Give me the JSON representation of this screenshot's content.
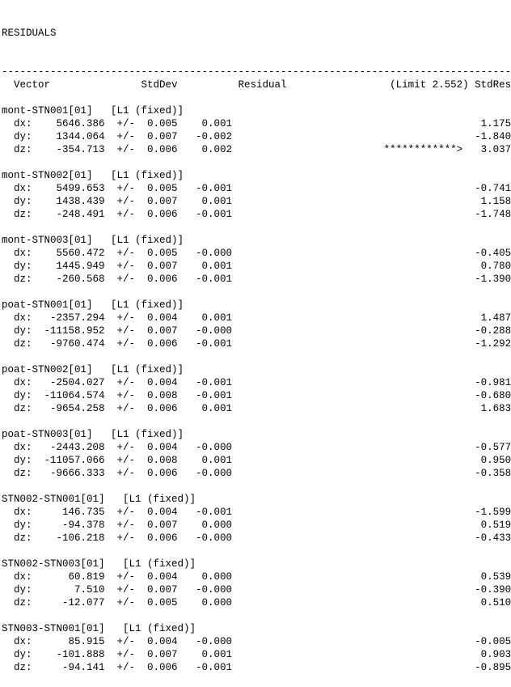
{
  "report": {
    "title": "RESIDUALS",
    "divider_char": "-",
    "line_width": 84,
    "columns": {
      "vector": "Vector",
      "stddev": "StdDev",
      "residual": "Residual",
      "limit_stdres": "(Limit 2.552) StdRes"
    },
    "limit": "2.552",
    "plus_minus": "+/-",
    "flag_marker": "************>",
    "solution_tag": "[L1 (fixed)]",
    "blocks": [
      {
        "name": "mont-STN001[01]",
        "rows": [
          {
            "label": "dx:",
            "value": "5646.386",
            "stddev": "0.005",
            "residual": "0.001",
            "flag": "",
            "stdres": "1.175"
          },
          {
            "label": "dy:",
            "value": "1344.064",
            "stddev": "0.007",
            "residual": "-0.002",
            "flag": "",
            "stdres": "-1.840"
          },
          {
            "label": "dz:",
            "value": "-354.713",
            "stddev": "0.006",
            "residual": "0.002",
            "flag": "************>",
            "stdres": "3.037"
          }
        ]
      },
      {
        "name": "mont-STN002[01]",
        "rows": [
          {
            "label": "dx:",
            "value": "5499.653",
            "stddev": "0.005",
            "residual": "-0.001",
            "flag": "",
            "stdres": "-0.741"
          },
          {
            "label": "dy:",
            "value": "1438.439",
            "stddev": "0.007",
            "residual": "0.001",
            "flag": "",
            "stdres": "1.158"
          },
          {
            "label": "dz:",
            "value": "-248.491",
            "stddev": "0.006",
            "residual": "-0.001",
            "flag": "",
            "stdres": "-1.748"
          }
        ]
      },
      {
        "name": "mont-STN003[01]",
        "rows": [
          {
            "label": "dx:",
            "value": "5560.472",
            "stddev": "0.005",
            "residual": "-0.000",
            "flag": "",
            "stdres": "-0.405"
          },
          {
            "label": "dy:",
            "value": "1445.949",
            "stddev": "0.007",
            "residual": "0.001",
            "flag": "",
            "stdres": "0.780"
          },
          {
            "label": "dz:",
            "value": "-260.568",
            "stddev": "0.006",
            "residual": "-0.001",
            "flag": "",
            "stdres": "-1.390"
          }
        ]
      },
      {
        "name": "poat-STN001[01]",
        "rows": [
          {
            "label": "dx:",
            "value": "-2357.294",
            "stddev": "0.004",
            "residual": "0.001",
            "flag": "",
            "stdres": "1.487"
          },
          {
            "label": "dy:",
            "value": "-11158.952",
            "stddev": "0.007",
            "residual": "-0.000",
            "flag": "",
            "stdres": "-0.288"
          },
          {
            "label": "dz:",
            "value": "-9760.474",
            "stddev": "0.006",
            "residual": "-0.001",
            "flag": "",
            "stdres": "-1.292"
          }
        ]
      },
      {
        "name": "poat-STN002[01]",
        "rows": [
          {
            "label": "dx:",
            "value": "-2504.027",
            "stddev": "0.004",
            "residual": "-0.001",
            "flag": "",
            "stdres": "-0.981"
          },
          {
            "label": "dy:",
            "value": "-11064.574",
            "stddev": "0.008",
            "residual": "-0.001",
            "flag": "",
            "stdres": "-0.680"
          },
          {
            "label": "dz:",
            "value": "-9654.258",
            "stddev": "0.006",
            "residual": "0.001",
            "flag": "",
            "stdres": "1.683"
          }
        ]
      },
      {
        "name": "poat-STN003[01]",
        "rows": [
          {
            "label": "dx:",
            "value": "-2443.208",
            "stddev": "0.004",
            "residual": "-0.000",
            "flag": "",
            "stdres": "-0.577"
          },
          {
            "label": "dy:",
            "value": "-11057.066",
            "stddev": "0.008",
            "residual": "0.001",
            "flag": "",
            "stdres": "0.950"
          },
          {
            "label": "dz:",
            "value": "-9666.333",
            "stddev": "0.006",
            "residual": "-0.000",
            "flag": "",
            "stdres": "-0.358"
          }
        ]
      },
      {
        "name": "STN002-STN001[01]",
        "rows": [
          {
            "label": "dx:",
            "value": "146.735",
            "stddev": "0.004",
            "residual": "-0.001",
            "flag": "",
            "stdres": "-1.599"
          },
          {
            "label": "dy:",
            "value": "-94.378",
            "stddev": "0.007",
            "residual": "0.000",
            "flag": "",
            "stdres": "0.519"
          },
          {
            "label": "dz:",
            "value": "-106.218",
            "stddev": "0.006",
            "residual": "-0.000",
            "flag": "",
            "stdres": "-0.433"
          }
        ]
      },
      {
        "name": "STN002-STN003[01]",
        "rows": [
          {
            "label": "dx:",
            "value": "60.819",
            "stddev": "0.004",
            "residual": "0.000",
            "flag": "",
            "stdres": "0.539"
          },
          {
            "label": "dy:",
            "value": "7.510",
            "stddev": "0.007",
            "residual": "-0.000",
            "flag": "",
            "stdres": "-0.390"
          },
          {
            "label": "dz:",
            "value": "-12.077",
            "stddev": "0.005",
            "residual": "0.000",
            "flag": "",
            "stdres": "0.510"
          }
        ]
      },
      {
        "name": "STN003-STN001[01]",
        "rows": [
          {
            "label": "dx:",
            "value": "85.915",
            "stddev": "0.004",
            "residual": "-0.000",
            "flag": "",
            "stdres": "-0.005"
          },
          {
            "label": "dy:",
            "value": "-101.888",
            "stddev": "0.007",
            "residual": "0.001",
            "flag": "",
            "stdres": "0.903"
          },
          {
            "label": "dz:",
            "value": "-94.141",
            "stddev": "0.006",
            "residual": "-0.001",
            "flag": "",
            "stdres": "-0.895"
          }
        ]
      }
    ],
    "colors": {
      "text": "#000000",
      "background": "#ffffff"
    }
  }
}
